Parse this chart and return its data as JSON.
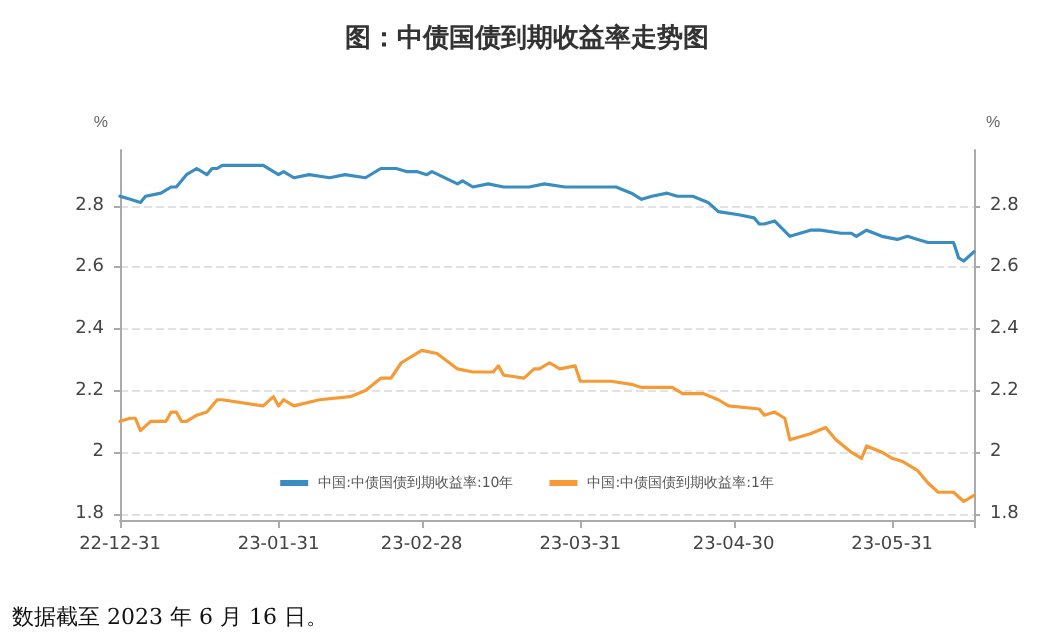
{
  "chart_data": {
    "type": "line",
    "title": "图：中债国债到期收益率走势图",
    "ylabel": "%",
    "y2label": "%",
    "annotations": [
      "数据截至 2023 年 6 月 16 日。"
    ],
    "xlim": [
      "2022-12-31",
      "2023-06-16"
    ],
    "xticks": [
      {
        "value": "2022-12-31",
        "label": "22-12-31"
      },
      {
        "value": "2023-01-31",
        "label": "23-01-31"
      },
      {
        "value": "2023-02-28",
        "label": "23-02-28"
      },
      {
        "value": "2023-03-31",
        "label": "23-03-31"
      },
      {
        "value": "2023-04-30",
        "label": "23-04-30"
      },
      {
        "value": "2023-05-31",
        "label": "23-05-31"
      },
      {
        "value": "2023-06-16",
        "label": null
      }
    ],
    "ylim": [
      1.78,
      2.98
    ],
    "yticks": [
      1.8,
      2,
      2.2,
      2.4,
      2.6,
      2.8
    ],
    "y2lim": [
      1.78,
      2.98
    ],
    "y2ticks": [
      1.8,
      2,
      2.2,
      2.4,
      2.6,
      2.8
    ],
    "grid": "y",
    "legend": "bottom",
    "marker": "none",
    "line_style": "solid",
    "series": [
      {
        "name": "中国:中债国债到期收益率:10年",
        "color": "#3a8dc0",
        "x": [
          "2022-12-31",
          "2023-01-02",
          "2023-01-04",
          "2023-01-05",
          "2023-01-08",
          "2023-01-10",
          "2023-01-11",
          "2023-01-13",
          "2023-01-15",
          "2023-01-17",
          "2023-01-18",
          "2023-01-19",
          "2023-01-20",
          "2023-01-28",
          "2023-01-31",
          "2023-02-01",
          "2023-02-03",
          "2023-02-06",
          "2023-02-10",
          "2023-02-13",
          "2023-02-17",
          "2023-02-20",
          "2023-02-23",
          "2023-02-25",
          "2023-02-27",
          "2023-03-01",
          "2023-03-02",
          "2023-03-07",
          "2023-03-08",
          "2023-03-10",
          "2023-03-13",
          "2023-03-16",
          "2023-03-21",
          "2023-03-24",
          "2023-03-28",
          "2023-04-01",
          "2023-04-07",
          "2023-04-10",
          "2023-04-12",
          "2023-04-14",
          "2023-04-17",
          "2023-04-19",
          "2023-04-22",
          "2023-04-25",
          "2023-04-27",
          "2023-05-01",
          "2023-05-04",
          "2023-05-05",
          "2023-05-06",
          "2023-05-08",
          "2023-05-11",
          "2023-05-15",
          "2023-05-17",
          "2023-05-21",
          "2023-05-23",
          "2023-05-24",
          "2023-05-26",
          "2023-05-29",
          "2023-06-01",
          "2023-06-03",
          "2023-06-05",
          "2023-06-07",
          "2023-06-09",
          "2023-06-12",
          "2023-06-13",
          "2023-06-14",
          "2023-06-16"
        ],
        "values": [
          2.83,
          2.82,
          2.81,
          2.83,
          2.84,
          2.86,
          2.86,
          2.9,
          2.92,
          2.9,
          2.92,
          2.92,
          2.93,
          2.93,
          2.9,
          2.91,
          2.89,
          2.9,
          2.89,
          2.9,
          2.89,
          2.92,
          2.92,
          2.91,
          2.91,
          2.9,
          2.91,
          2.87,
          2.88,
          2.86,
          2.87,
          2.86,
          2.86,
          2.87,
          2.86,
          2.86,
          2.86,
          2.84,
          2.82,
          2.83,
          2.84,
          2.83,
          2.83,
          2.81,
          2.78,
          2.77,
          2.76,
          2.74,
          2.74,
          2.75,
          2.7,
          2.72,
          2.72,
          2.71,
          2.71,
          2.7,
          2.72,
          2.7,
          2.69,
          2.7,
          2.69,
          2.68,
          2.68,
          2.68,
          2.63,
          2.62,
          2.65
        ]
      },
      {
        "name": "中国:中债国债到期收益率:1年",
        "color": "#f59a35",
        "x": [
          "2022-12-31",
          "2023-01-02",
          "2023-01-03",
          "2023-01-04",
          "2023-01-06",
          "2023-01-09",
          "2023-01-10",
          "2023-01-11",
          "2023-01-12",
          "2023-01-13",
          "2023-01-15",
          "2023-01-17",
          "2023-01-19",
          "2023-01-20",
          "2023-01-28",
          "2023-01-30",
          "2023-01-31",
          "2023-02-01",
          "2023-02-03",
          "2023-02-08",
          "2023-02-14",
          "2023-02-17",
          "2023-02-20",
          "2023-02-22",
          "2023-02-24",
          "2023-02-28",
          "2023-03-03",
          "2023-03-07",
          "2023-03-10",
          "2023-03-14",
          "2023-03-15",
          "2023-03-16",
          "2023-03-20",
          "2023-03-22",
          "2023-03-23",
          "2023-03-25",
          "2023-03-27",
          "2023-03-30",
          "2023-03-31",
          "2023-04-06",
          "2023-04-10",
          "2023-04-12",
          "2023-04-18",
          "2023-04-20",
          "2023-04-24",
          "2023-04-27",
          "2023-04-29",
          "2023-05-05",
          "2023-05-06",
          "2023-05-08",
          "2023-05-10",
          "2023-05-11",
          "2023-05-15",
          "2023-05-18",
          "2023-05-20",
          "2023-05-23",
          "2023-05-25",
          "2023-05-26",
          "2023-05-29",
          "2023-05-31",
          "2023-06-02",
          "2023-06-05",
          "2023-06-07",
          "2023-06-09",
          "2023-06-12",
          "2023-06-14",
          "2023-06-16"
        ],
        "values": [
          2.1,
          2.11,
          2.11,
          2.07,
          2.1,
          2.1,
          2.13,
          2.13,
          2.1,
          2.1,
          2.12,
          2.13,
          2.17,
          2.17,
          2.15,
          2.18,
          2.15,
          2.17,
          2.15,
          2.17,
          2.18,
          2.2,
          2.24,
          2.24,
          2.29,
          2.33,
          2.32,
          2.27,
          2.26,
          2.26,
          2.28,
          2.25,
          2.24,
          2.27,
          2.27,
          2.29,
          2.27,
          2.28,
          2.23,
          2.23,
          2.22,
          2.21,
          2.21,
          2.19,
          2.19,
          2.17,
          2.15,
          2.14,
          2.12,
          2.13,
          2.11,
          2.04,
          2.06,
          2.08,
          2.04,
          2,
          1.98,
          2.02,
          2,
          1.98,
          1.97,
          1.94,
          1.9,
          1.87,
          1.87,
          1.84,
          1.86
        ]
      }
    ]
  }
}
